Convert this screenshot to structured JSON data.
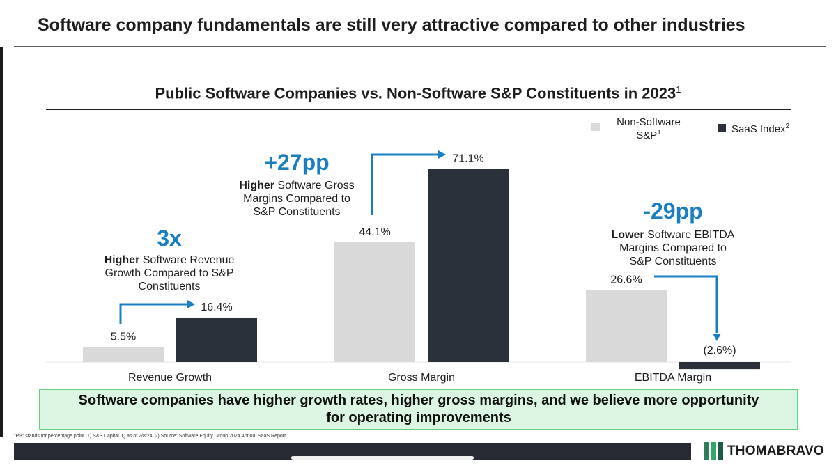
{
  "slide": {
    "title": "Software company fundamentals are still very attractive compared to other industries",
    "footnote": "\"PP\" stands for percentage point. 1) S&P Capital IQ as of 2/8/24. 2) Source: Software Equity Group 2024 Annual SaaS Report.",
    "callout": "Software companies have higher growth rates, higher gross margins, and we believe more opportunity for operating improvements",
    "brand": "THOMABRAVO"
  },
  "chart_data": {
    "type": "bar",
    "title": "Public Software Companies vs. Non-Software S&P Constituents in 2023",
    "title_sup": "1",
    "categories": [
      "Revenue Growth",
      "Gross Margin",
      "EBITDA Margin"
    ],
    "series": [
      {
        "name": "Non-Software S&P",
        "sup": "1",
        "color": "#d9d9d9",
        "values": [
          5.5,
          44.1,
          26.6
        ],
        "labels": [
          "5.5%",
          "44.1%",
          "26.6%"
        ]
      },
      {
        "name": "SaaS Index",
        "sup": "2",
        "color": "#2b313a",
        "values": [
          16.4,
          71.1,
          -2.6
        ],
        "labels": [
          "16.4%",
          "71.1%",
          "(2.6%)"
        ]
      }
    ],
    "legend_position": "top-right",
    "annotations": [
      {
        "big": "3x",
        "bold": "Higher",
        "rest": " Software Revenue Growth Compared to S&P Constituents"
      },
      {
        "big": "+27pp",
        "bold": "Higher",
        "rest": " Software Gross Margins Compared to S&P Constituents"
      },
      {
        "big": "-29pp",
        "bold": "Lower",
        "rest": " Software EBITDA Margins Compared to S&P Constituents"
      }
    ],
    "accent_color": "#1a7fc1",
    "grid": false
  },
  "colors": {
    "brand_mark": [
      "#2f7d5a",
      "#34a86b",
      "#1c5c45"
    ]
  }
}
